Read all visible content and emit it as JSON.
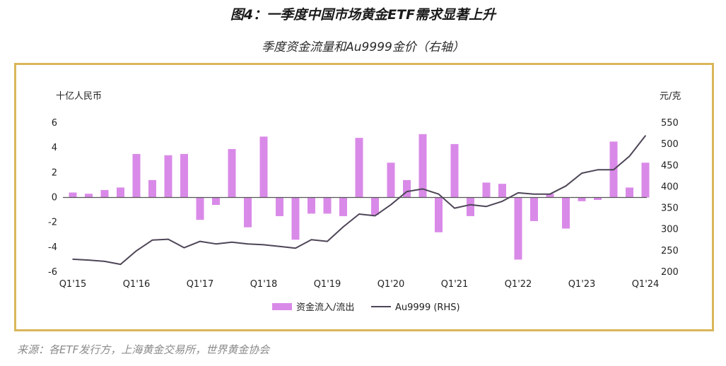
{
  "title": "图4：一季度中国市场黄金ETF需求显著上升",
  "subtitle": "季度资金流量和Au9999金价（右轴）",
  "source": "来源：各ETF发行方，上海黄金交易所，世界黄金协会",
  "colors": {
    "bar": "#d98ae8",
    "line": "#4e4557",
    "frame": "#d9b65a",
    "zero": "#555555"
  },
  "chart_data": {
    "type": "bar+line",
    "y_left_label": "十亿人民币",
    "y_right_label": "元/克",
    "y_left_range": [
      -6,
      6
    ],
    "y_left_ticks": [
      "-6",
      "-4",
      "-2",
      "0",
      "2",
      "4",
      "6"
    ],
    "y_right_range": [
      200,
      550
    ],
    "y_right_ticks": [
      "200",
      "250",
      "300",
      "350",
      "400",
      "450",
      "500",
      "550"
    ],
    "x_tick_labels": [
      {
        "index": 0,
        "label": "Q1'15"
      },
      {
        "index": 4,
        "label": "Q1'16"
      },
      {
        "index": 8,
        "label": "Q1'17"
      },
      {
        "index": 12,
        "label": "Q1'18"
      },
      {
        "index": 16,
        "label": "Q1'19"
      },
      {
        "index": 20,
        "label": "Q1'20"
      },
      {
        "index": 24,
        "label": "Q1'21"
      },
      {
        "index": 28,
        "label": "Q1'22"
      },
      {
        "index": 32,
        "label": "Q1'23"
      },
      {
        "index": 36,
        "label": "Q1'24"
      }
    ],
    "categories": [
      "Q1'15",
      "Q2'15",
      "Q3'15",
      "Q4'15",
      "Q1'16",
      "Q2'16",
      "Q3'16",
      "Q4'16",
      "Q1'17",
      "Q2'17",
      "Q3'17",
      "Q4'17",
      "Q1'18",
      "Q2'18",
      "Q3'18",
      "Q4'18",
      "Q1'19",
      "Q2'19",
      "Q3'19",
      "Q4'19",
      "Q1'20",
      "Q2'20",
      "Q3'20",
      "Q4'20",
      "Q1'21",
      "Q2'21",
      "Q3'21",
      "Q4'21",
      "Q1'22",
      "Q2'22",
      "Q3'22",
      "Q4'22",
      "Q1'23",
      "Q2'23",
      "Q3'23",
      "Q4'23",
      "Q1'24"
    ],
    "series": [
      {
        "name": "资金流入/流出",
        "type": "bar",
        "axis": "left",
        "values": [
          0.4,
          0.3,
          0.6,
          0.8,
          3.5,
          1.4,
          3.4,
          3.5,
          -1.8,
          -0.6,
          3.9,
          -2.4,
          4.9,
          -1.5,
          -3.4,
          -1.3,
          -1.3,
          -1.5,
          4.8,
          -1.4,
          2.8,
          1.4,
          5.1,
          -2.8,
          4.3,
          -1.5,
          1.2,
          1.1,
          -5.0,
          -1.9,
          0.3,
          -2.5,
          -0.3,
          -0.2,
          4.5,
          0.8,
          2.8
        ]
      },
      {
        "name": "Au9999 (RHS)",
        "type": "line",
        "axis": "right",
        "values": [
          230,
          228,
          225,
          218,
          250,
          275,
          277,
          257,
          272,
          266,
          270,
          266,
          264,
          260,
          256,
          276,
          272,
          306,
          336,
          332,
          358,
          389,
          395,
          383,
          350,
          358,
          354,
          366,
          386,
          383,
          383,
          402,
          432,
          440,
          440,
          472,
          520
        ]
      }
    ],
    "legend_position": "bottom-center",
    "grid": false
  }
}
